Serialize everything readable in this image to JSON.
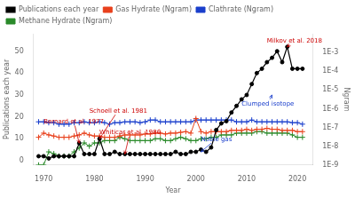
{
  "chart_data": {
    "type": "line",
    "x_label": "Year",
    "y_label": "Publications each year",
    "y2_label": "Ngram",
    "x": [
      1969,
      1970,
      1971,
      1972,
      1973,
      1974,
      1975,
      1976,
      1977,
      1978,
      1979,
      1980,
      1981,
      1982,
      1983,
      1984,
      1985,
      1986,
      1987,
      1988,
      1989,
      1990,
      1991,
      1992,
      1993,
      1994,
      1995,
      1996,
      1997,
      1998,
      1999,
      2000,
      2001,
      2002,
      2003,
      2004,
      2005,
      2006,
      2007,
      2008,
      2009,
      2010,
      2011,
      2012,
      2013,
      2014,
      2015,
      2016,
      2017,
      2018,
      2019,
      2020,
      2021
    ],
    "series": [
      {
        "name": "Publications each year",
        "color": "#000000",
        "marker": "circle",
        "values": [
          2,
          2,
          1,
          2,
          2,
          2,
          2,
          2,
          8,
          3,
          3,
          3,
          10,
          3,
          3,
          4,
          3,
          3,
          3,
          3,
          3,
          3,
          3,
          3,
          3,
          3,
          3,
          4,
          3,
          3,
          4,
          4,
          5,
          4,
          6,
          14,
          17,
          18,
          22,
          25,
          28,
          30,
          35,
          40,
          42,
          45,
          47,
          50,
          45,
          52,
          42,
          42,
          42
        ]
      },
      {
        "name": "Gas Hydrate (Ngram)",
        "color": "#e8401c",
        "marker": "plus",
        "axis": "y2",
        "values": [
          3e-08,
          5e-08,
          4e-08,
          3.5e-08,
          3e-08,
          3e-08,
          3e-08,
          3.5e-08,
          4e-08,
          5e-08,
          4e-08,
          3.5e-08,
          3.5e-08,
          3e-08,
          3e-08,
          3e-08,
          3.5e-08,
          4e-08,
          4e-08,
          4e-08,
          4e-08,
          4.5e-08,
          4.5e-08,
          5e-08,
          5e-08,
          4.5e-08,
          5e-08,
          5e-08,
          5.5e-08,
          6e-08,
          5e-08,
          3e-07,
          6e-08,
          5e-08,
          6e-08,
          6e-08,
          6e-08,
          6e-08,
          7e-08,
          7e-08,
          7e-08,
          8e-08,
          7e-08,
          8e-08,
          8e-08,
          9e-08,
          8e-08,
          8e-08,
          7e-08,
          7e-08,
          7e-08,
          6e-08,
          6e-08
        ]
      },
      {
        "name": "Clathrate (Ngram)",
        "color": "#1a3fcc",
        "marker": "plus",
        "axis": "y2",
        "values": [
          2e-07,
          2e-07,
          1.8e-07,
          1.8e-07,
          1.5e-07,
          1.5e-07,
          1.5e-07,
          1.8e-07,
          1.8e-07,
          2e-07,
          1.8e-07,
          1.8e-07,
          2e-07,
          1.8e-07,
          1.5e-07,
          1.8e-07,
          1.8e-07,
          2e-07,
          2e-07,
          2e-07,
          1.8e-07,
          2e-07,
          2.5e-07,
          2.5e-07,
          2e-07,
          2e-07,
          2e-07,
          2e-07,
          2e-07,
          2e-07,
          2e-07,
          2.5e-07,
          2.5e-07,
          2.5e-07,
          2.5e-07,
          2.5e-07,
          2.5e-07,
          2.5e-07,
          2.5e-07,
          2e-07,
          2e-07,
          2e-07,
          2.5e-07,
          2e-07,
          2e-07,
          2e-07,
          2e-07,
          2e-07,
          2e-07,
          2e-07,
          1.8e-07,
          1.8e-07,
          1.5e-07
        ]
      },
      {
        "name": "Methane Hydrate (Ngram)",
        "color": "#2a8a2a",
        "marker": "plus",
        "axis": "y2",
        "values": [
          1e-09,
          1e-09,
          5e-09,
          4e-09,
          3e-09,
          3e-09,
          3e-09,
          5e-09,
          8e-09,
          1.5e-08,
          1e-08,
          1.5e-08,
          1.5e-08,
          2e-08,
          2e-08,
          2e-08,
          3e-08,
          2.5e-08,
          2e-08,
          2e-08,
          2e-08,
          2e-08,
          2e-08,
          2.5e-08,
          2.5e-08,
          2e-08,
          2e-08,
          2.5e-08,
          3e-08,
          2.5e-08,
          2e-08,
          2e-08,
          2.5e-08,
          2.5e-08,
          3e-08,
          3e-08,
          4e-08,
          4e-08,
          4e-08,
          5e-08,
          5e-08,
          5e-08,
          5e-08,
          6e-08,
          6e-08,
          5e-08,
          5e-08,
          5e-08,
          5e-08,
          5e-08,
          4e-08,
          3e-08,
          3e-08
        ]
      }
    ],
    "xlim": [
      1968,
      2023
    ],
    "xticks": [
      1970,
      1980,
      1990,
      2000,
      2010,
      2020
    ],
    "ylim": [
      -2,
      58
    ],
    "yticks": [
      0,
      10,
      20,
      30,
      40,
      50
    ],
    "y2lim": [
      1e-09,
      0.01
    ],
    "y2ticks": [
      {
        "value": 1e-09,
        "label": "1E-9"
      },
      {
        "value": 1e-08,
        "label": "1E-8"
      },
      {
        "value": 1e-07,
        "label": "1E-7"
      },
      {
        "value": 1e-06,
        "label": "1E-6"
      },
      {
        "value": 1e-05,
        "label": "1E-5"
      },
      {
        "value": 0.0001,
        "label": "1E-4"
      },
      {
        "value": 0.001,
        "label": "1E-3"
      }
    ],
    "log": "y2",
    "grid": false,
    "legend": "upper left",
    "annotations": [
      {
        "text": "Bernard et al. 1977",
        "xy": [
          1977,
          8
        ],
        "xytext": [
          1970,
          17
        ],
        "color": "#cc0000"
      },
      {
        "text": "Schoell et al. 1981",
        "xy": [
          1981,
          10
        ],
        "xytext": [
          1979,
          22
        ],
        "color": "#cc0000"
      },
      {
        "text": "Whiticar et al. 1986",
        "xy": [
          1986,
          3
        ],
        "xytext": [
          1981,
          12
        ],
        "color": "#cc0000"
      },
      {
        "text": "Noble gas",
        "xy": [
          2001,
          4
        ],
        "xytext": [
          2001,
          9
        ],
        "color": "#1a3fcc"
      },
      {
        "text": "Clumped isotope",
        "xy": [
          2015,
          30
        ],
        "xytext": [
          2009,
          25
        ],
        "color": "#1a3fcc"
      },
      {
        "text": "Milkov et al. 2018",
        "xy": [
          2018,
          52
        ],
        "xytext": [
          2014,
          54
        ],
        "color": "#cc0000"
      }
    ]
  }
}
